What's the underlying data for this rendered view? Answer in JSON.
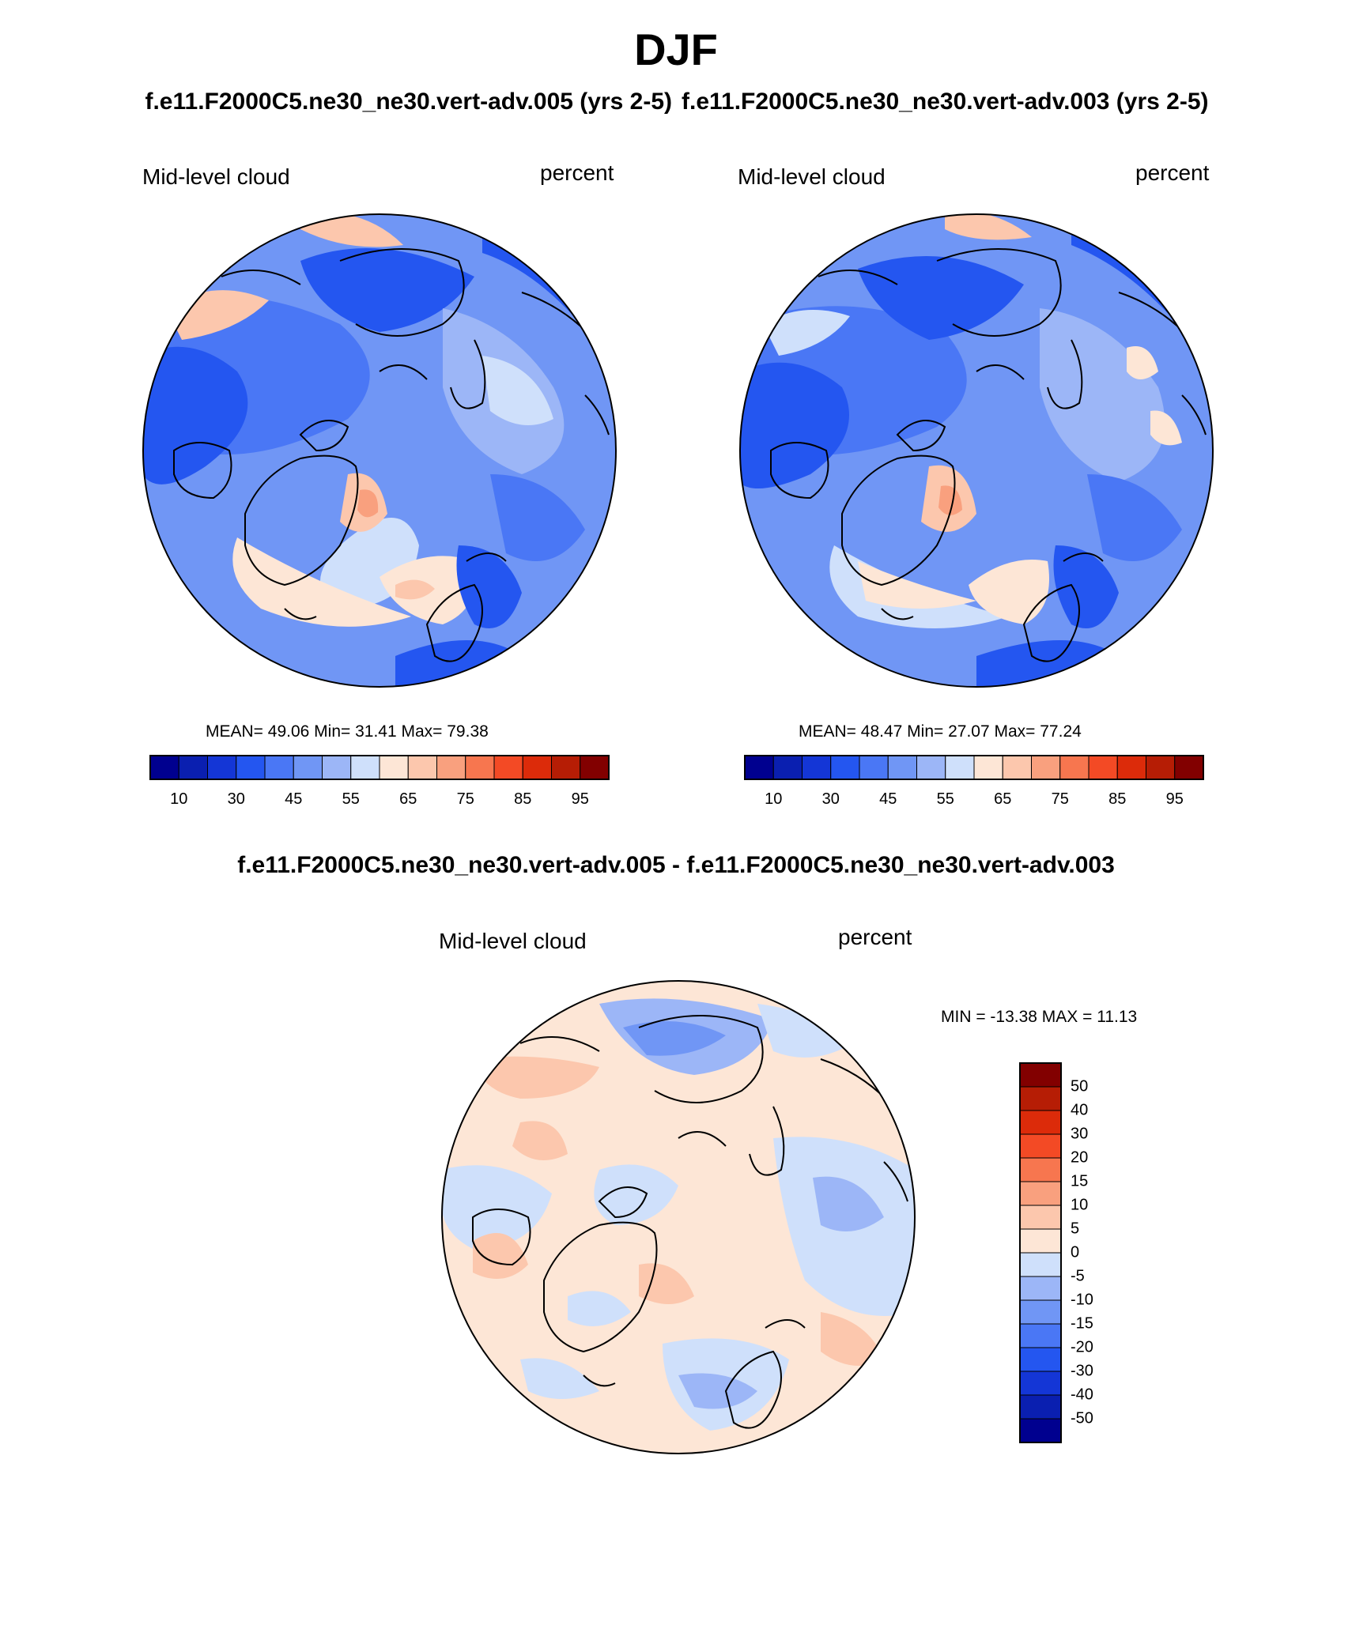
{
  "title": "DJF",
  "panels": [
    {
      "case_title": "f.e11.F2000C5.ne30_ne30.vert-adv.005 (yrs 2-5)",
      "left_label": "Mid-level cloud",
      "right_label": "percent",
      "stats": "MEAN=  49.06  Min=  31.41  Max=  79.38"
    },
    {
      "case_title": "f.e11.F2000C5.ne30_ne30.vert-adv.003 (yrs 2-5)",
      "left_label": "Mid-level cloud",
      "right_label": "percent",
      "stats": "MEAN=  48.47  Min=  27.07  Max=  77.24"
    }
  ],
  "diff": {
    "title": "f.e11.F2000C5.ne30_ne30.vert-adv.005 - f.e11.F2000C5.ne30_ne30.vert-adv.003",
    "left_label": "Mid-level cloud",
    "right_label": "percent",
    "stats": "MIN = -13.38 MAX =  11.13"
  },
  "colorbar_main": {
    "tick_labels": [
      "10",
      "30",
      "45",
      "55",
      "65",
      "75",
      "85",
      "95"
    ],
    "colors": [
      "#00008f",
      "#0a1fb0",
      "#1436d6",
      "#2456f0",
      "#4a77f5",
      "#7096f5",
      "#9cb6f7",
      "#cfe0fb",
      "#fde6d6",
      "#fcc7ad",
      "#f9a07e",
      "#f7764f",
      "#f34a25",
      "#dc2b0a",
      "#b61d05",
      "#820000"
    ]
  },
  "colorbar_diff": {
    "tick_labels": [
      "50",
      "40",
      "30",
      "20",
      "15",
      "10",
      "5",
      "0",
      "-5",
      "-10",
      "-15",
      "-20",
      "-30",
      "-40",
      "-50"
    ],
    "colors": [
      "#820000",
      "#b61d05",
      "#dc2b0a",
      "#f34a25",
      "#f7764f",
      "#f9a07e",
      "#fcc7ad",
      "#fde6d6",
      "#cfe0fb",
      "#9cb6f7",
      "#7096f5",
      "#4a77f5",
      "#2456f0",
      "#1436d6",
      "#0a1fb0",
      "#00008f"
    ]
  }
}
